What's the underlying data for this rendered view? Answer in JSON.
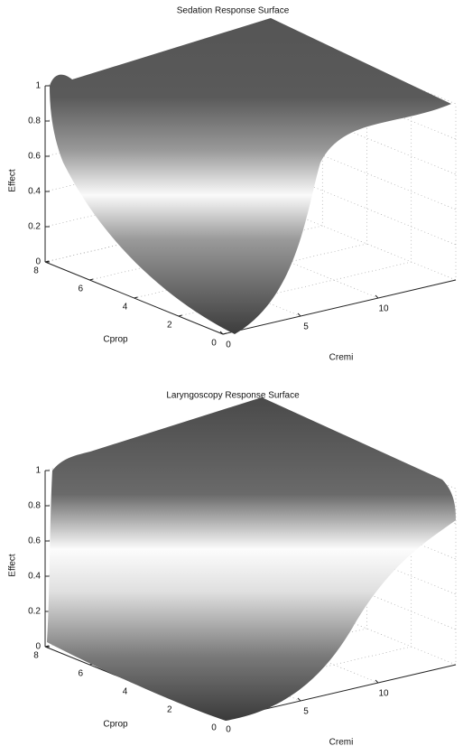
{
  "chart_data": [
    {
      "type": "surface",
      "title": "Sedation Response Surface",
      "xlabel": "Cremi",
      "ylabel": "Cprop",
      "zlabel": "Effect",
      "xlim": [
        0,
        15
      ],
      "xticks": [
        0,
        5,
        10
      ],
      "ylim": [
        0,
        8
      ],
      "yticks": [
        0,
        2,
        4,
        6,
        8
      ],
      "zlim": [
        0,
        1
      ],
      "zticks": [
        0,
        0.2,
        0.4,
        0.6,
        0.8,
        1
      ],
      "grid": true
    },
    {
      "type": "surface",
      "title": "Laryngoscopy Response Surface",
      "xlabel": "Cremi",
      "ylabel": "Cprop",
      "zlabel": "Effect",
      "xlim": [
        0,
        15
      ],
      "xticks": [
        0,
        5,
        10
      ],
      "ylim": [
        0,
        8
      ],
      "yticks": [
        0,
        2,
        4,
        6,
        8
      ],
      "zlim": [
        0,
        1
      ],
      "zticks": [
        0,
        0.2,
        0.4,
        0.6,
        0.8,
        1
      ],
      "grid": true
    }
  ]
}
